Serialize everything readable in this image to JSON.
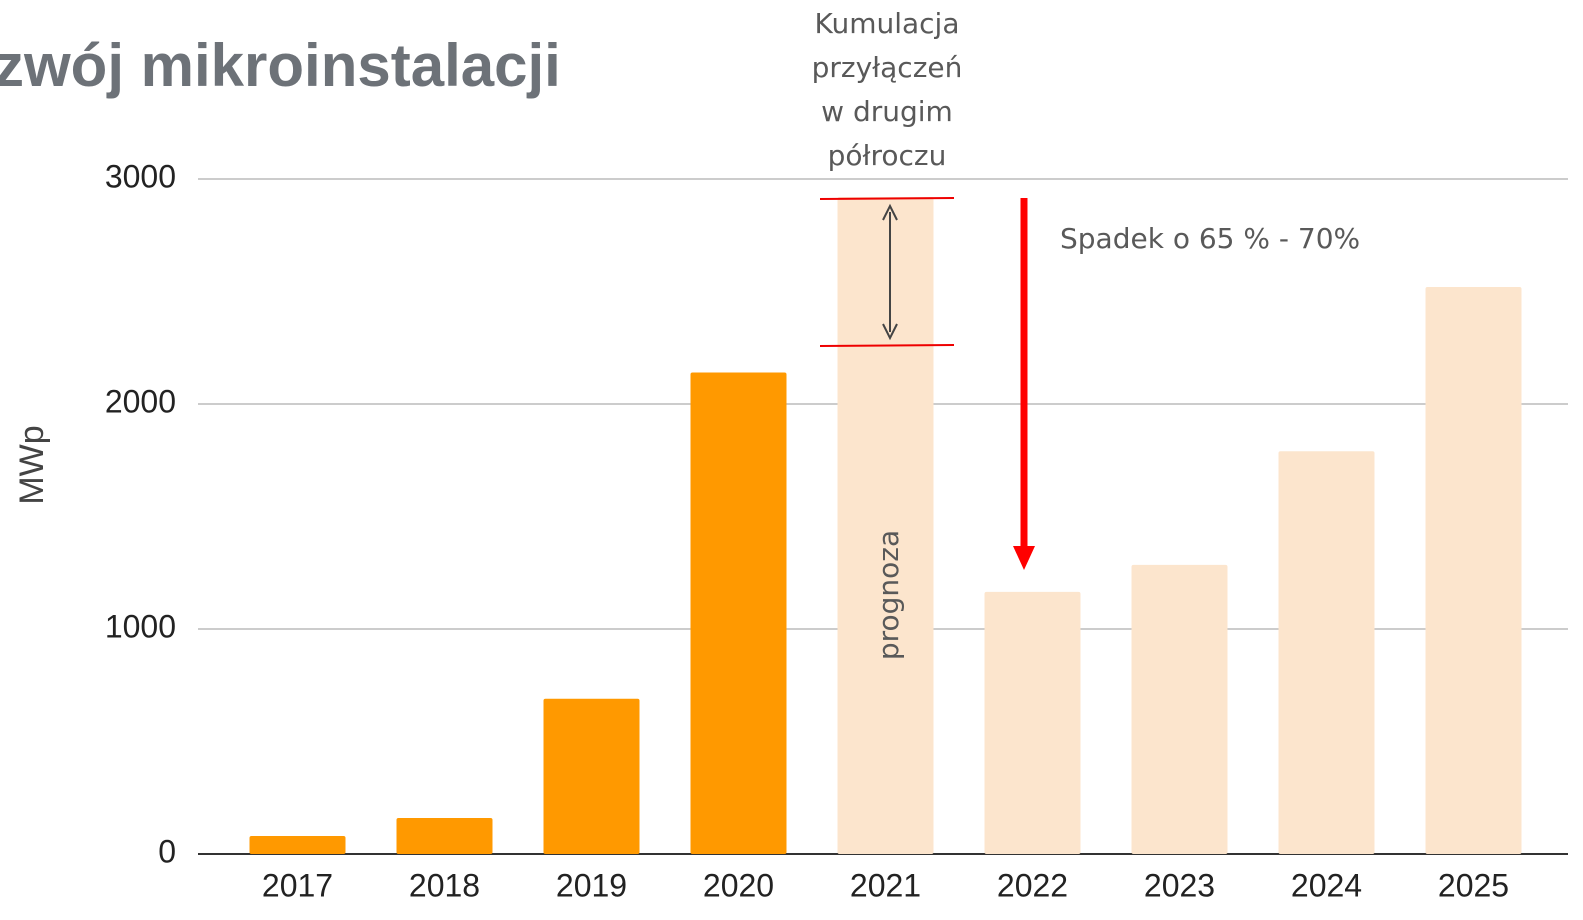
{
  "chart_data": {
    "type": "bar",
    "title": "zwój mikroinstalacji",
    "y_label": "MWp",
    "categories": [
      "2017",
      "2018",
      "2019",
      "2020",
      "2021",
      "2022",
      "2023",
      "2024",
      "2025"
    ],
    "values": [
      80,
      160,
      690,
      2140,
      2920,
      1165,
      1285,
      1790,
      2520
    ],
    "colors": [
      "#ff9900",
      "#ff9900",
      "#ff9900",
      "#ff9900",
      "#fce5cd",
      "#fce5cd",
      "#fce5cd",
      "#fce5cd",
      "#fce5cd"
    ],
    "ylim": [
      0,
      3000
    ],
    "yticks": [
      0,
      1000,
      2000,
      3000
    ],
    "grid": true,
    "annotations": {
      "cumulation": [
        "Kumulacja",
        "przyłączeń",
        "w drugim",
        "półroczu"
      ],
      "drop": "Spadek o 65 % - 70%",
      "forecast": "prognoza"
    }
  }
}
